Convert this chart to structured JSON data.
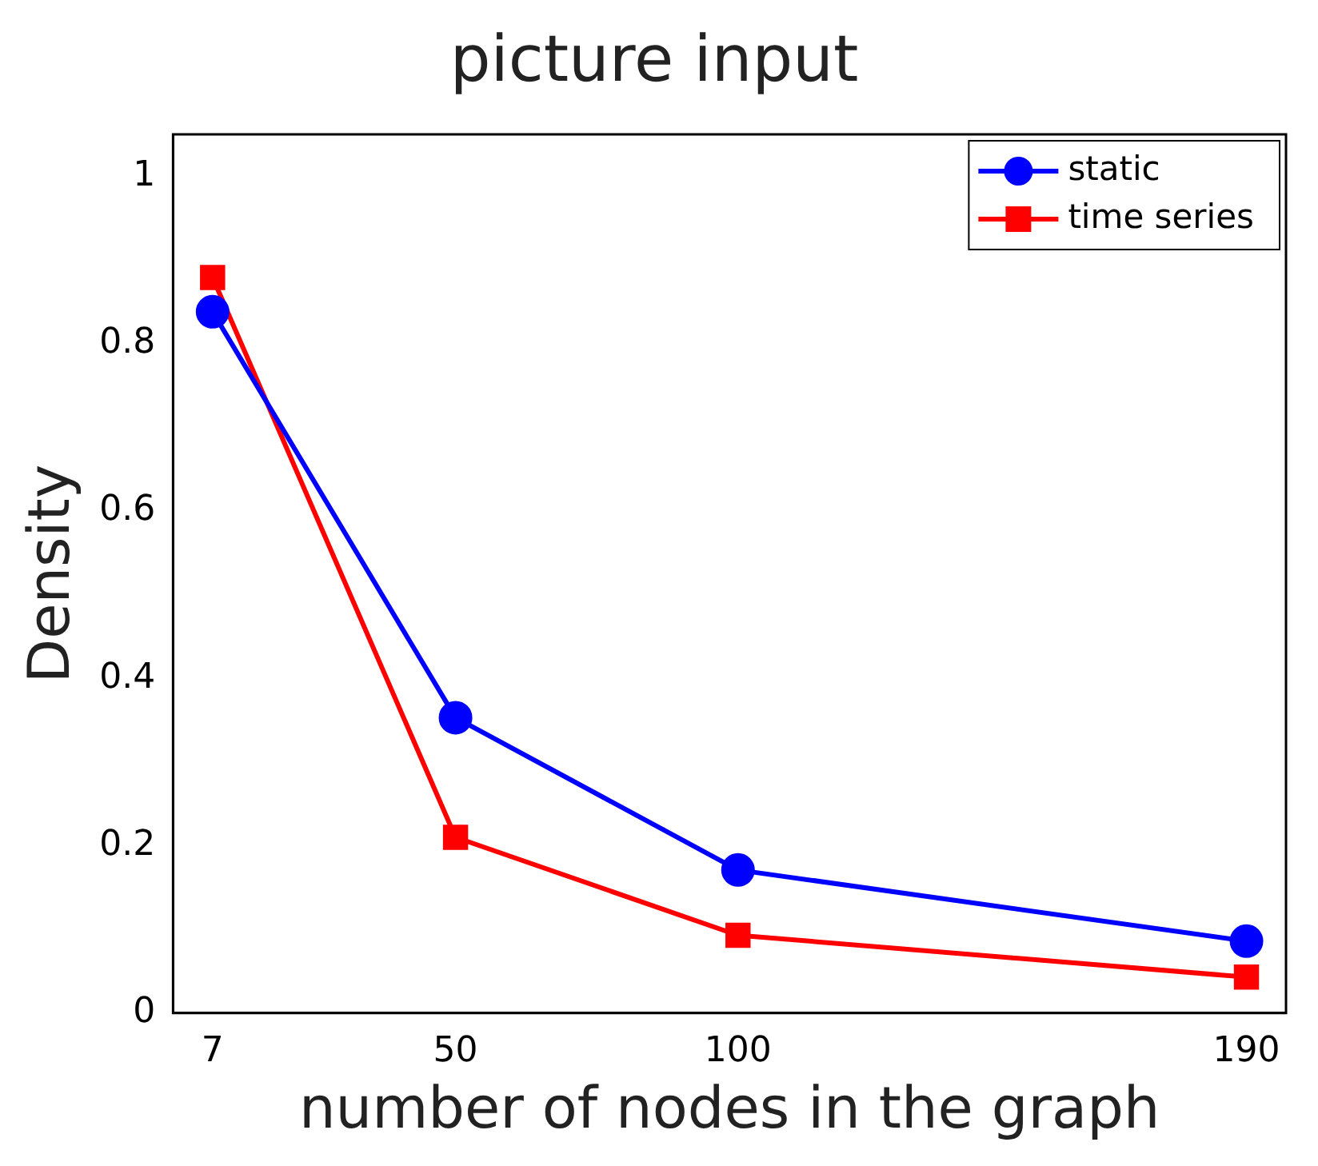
{
  "chart_data": {
    "type": "line",
    "title": "picture input",
    "xlabel": "number of nodes in the graph",
    "ylabel": "Density",
    "x": [
      7,
      50,
      100,
      190
    ],
    "series": [
      {
        "name": "static",
        "color": "#0000ff",
        "marker": "circle",
        "values": [
          0.838,
          0.353,
          0.171,
          0.086
        ]
      },
      {
        "name": "time series",
        "color": "#ff0000",
        "marker": "square",
        "values": [
          0.879,
          0.21,
          0.093,
          0.043
        ]
      }
    ],
    "xlim": [
      0,
      197
    ],
    "xticks": [
      7,
      50,
      100,
      190
    ],
    "ylim": [
      0,
      1.05
    ],
    "yticks": [
      0,
      0.2,
      0.4,
      0.6,
      0.8,
      1
    ],
    "grid": false,
    "legend": "top right",
    "line_style": "solid"
  }
}
